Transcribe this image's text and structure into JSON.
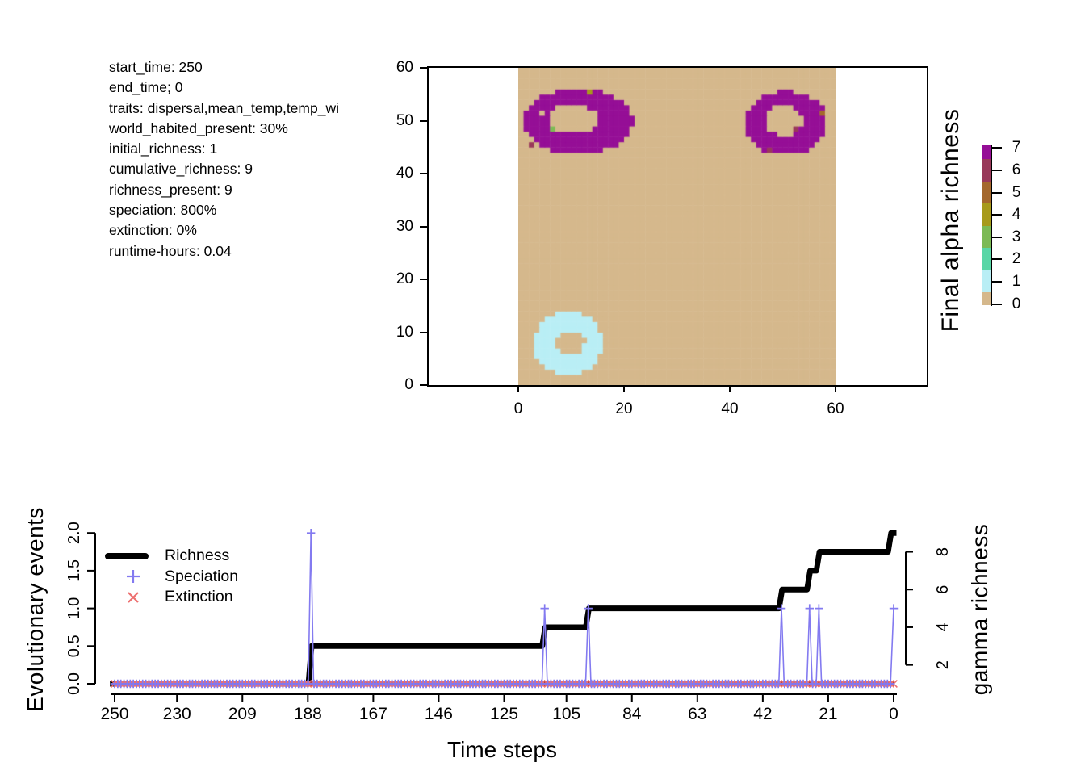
{
  "map": {
    "annotations": [
      "start_time: 250",
      "end_time; 0",
      "traits: dispersal,mean_temp,temp_wi",
      "world_habited_present: 30%",
      "initial_richness: 1",
      "cumulative_richness: 9",
      "richness_present: 9",
      "speciation: 800%",
      "extinction: 0%",
      "runtime-hours: 0.04"
    ],
    "colorbar_title": "Final alpha richness"
  },
  "timeline": {
    "ylabel": "Evolutionary events",
    "xlabel": "Time steps",
    "y2label": "gamma richness",
    "legend": [
      "Richness",
      "Speciation",
      "Extinction"
    ]
  },
  "chart_data": [
    {
      "type": "heatmap",
      "title": "Final alpha richness",
      "x_ticks": [
        0,
        20,
        40,
        60
      ],
      "y_ticks": [
        0,
        10,
        20,
        30,
        40,
        50,
        60
      ],
      "grid_size": [
        60,
        60
      ],
      "background_value": 0,
      "colorbar": {
        "levels": [
          7,
          6,
          5,
          4,
          3,
          2,
          1,
          0
        ],
        "colors": {
          "0": "#D5B88C",
          "1": "#B9EEF5",
          "2": "#59D6A6",
          "3": "#7CBA55",
          "4": "#A79A1B",
          "5": "#A4682D",
          "6": "#99395A",
          "7": "#950E96"
        }
      },
      "features": [
        {
          "kind": "ellipse-ring",
          "value": 7,
          "cx": 11.4,
          "cy": 49.9,
          "rx": 10.3,
          "ry": 6.2,
          "hole": {
            "cx": 10.4,
            "cy": 50.4,
            "rx": 4.7,
            "ry": 2.7
          },
          "desc": "magenta donut upper-left"
        },
        {
          "kind": "ellipse-ring",
          "value": 7,
          "cx": 50.6,
          "cy": 49.6,
          "rx": 7.9,
          "ry": 6.0,
          "hole": {
            "cx": 50.2,
            "cy": 50.1,
            "rx": 3.5,
            "ry": 2.9
          },
          "desc": "magenta donut upper-right"
        },
        {
          "kind": "ellipse-ring",
          "value": 1,
          "cx": 9.4,
          "cy": 7.9,
          "rx": 6.5,
          "ry": 6.0,
          "hole": {
            "cx": 9.9,
            "cy": 8.1,
            "rx": 2.7,
            "ry": 2.2
          },
          "desc": "pale cyan donut lower-left"
        }
      ],
      "stray_cells": [
        [
          13,
          55,
          4
        ],
        [
          6,
          48,
          3
        ],
        [
          2,
          45,
          6
        ],
        [
          4,
          51,
          0
        ],
        [
          57,
          51,
          5
        ],
        [
          52,
          48,
          6
        ],
        [
          47,
          44,
          6
        ]
      ]
    },
    {
      "type": "line",
      "xlabel": "Time steps",
      "ylabel": "Evolutionary events",
      "y2label": "gamma richness",
      "x_axis": {
        "reversed": true,
        "ticks": [
          250,
          230,
          209,
          188,
          167,
          146,
          125,
          105,
          84,
          63,
          42,
          21,
          0
        ]
      },
      "y_axis": {
        "range": [
          0,
          2
        ],
        "ticks": [
          "0.0",
          "0.5",
          "1.0",
          "1.5",
          "2.0"
        ]
      },
      "y2_axis": {
        "ticks": [
          2,
          4,
          6,
          8
        ],
        "mapping": "gamma = 1 + 4 * events_value"
      },
      "colors": {
        "richness": "#000000",
        "speciation": "#837AF0",
        "extinction": "#ED6F6F",
        "band_core": "#7E2430",
        "band_line": "#4A41C8"
      },
      "series": [
        {
          "name": "Richness",
          "axis": "y2",
          "style": "step",
          "steps": [
            [
              250,
              1
            ],
            [
              187,
              3
            ],
            [
              112,
              4
            ],
            [
              98,
              5
            ],
            [
              36,
              6
            ],
            [
              27,
              7
            ],
            [
              24,
              8
            ],
            [
              1,
              9
            ]
          ],
          "final_value": 9
        },
        {
          "name": "Speciation",
          "marker": "+",
          "baseline": 0,
          "events": [
            [
              187,
              2
            ],
            [
              112,
              1
            ],
            [
              98,
              1
            ],
            [
              36,
              1
            ],
            [
              27,
              1
            ],
            [
              24,
              1
            ],
            [
              0,
              1
            ]
          ]
        },
        {
          "name": "Extinction",
          "marker": "x",
          "baseline": 0,
          "events": []
        }
      ],
      "t_range": [
        250,
        0
      ]
    }
  ]
}
